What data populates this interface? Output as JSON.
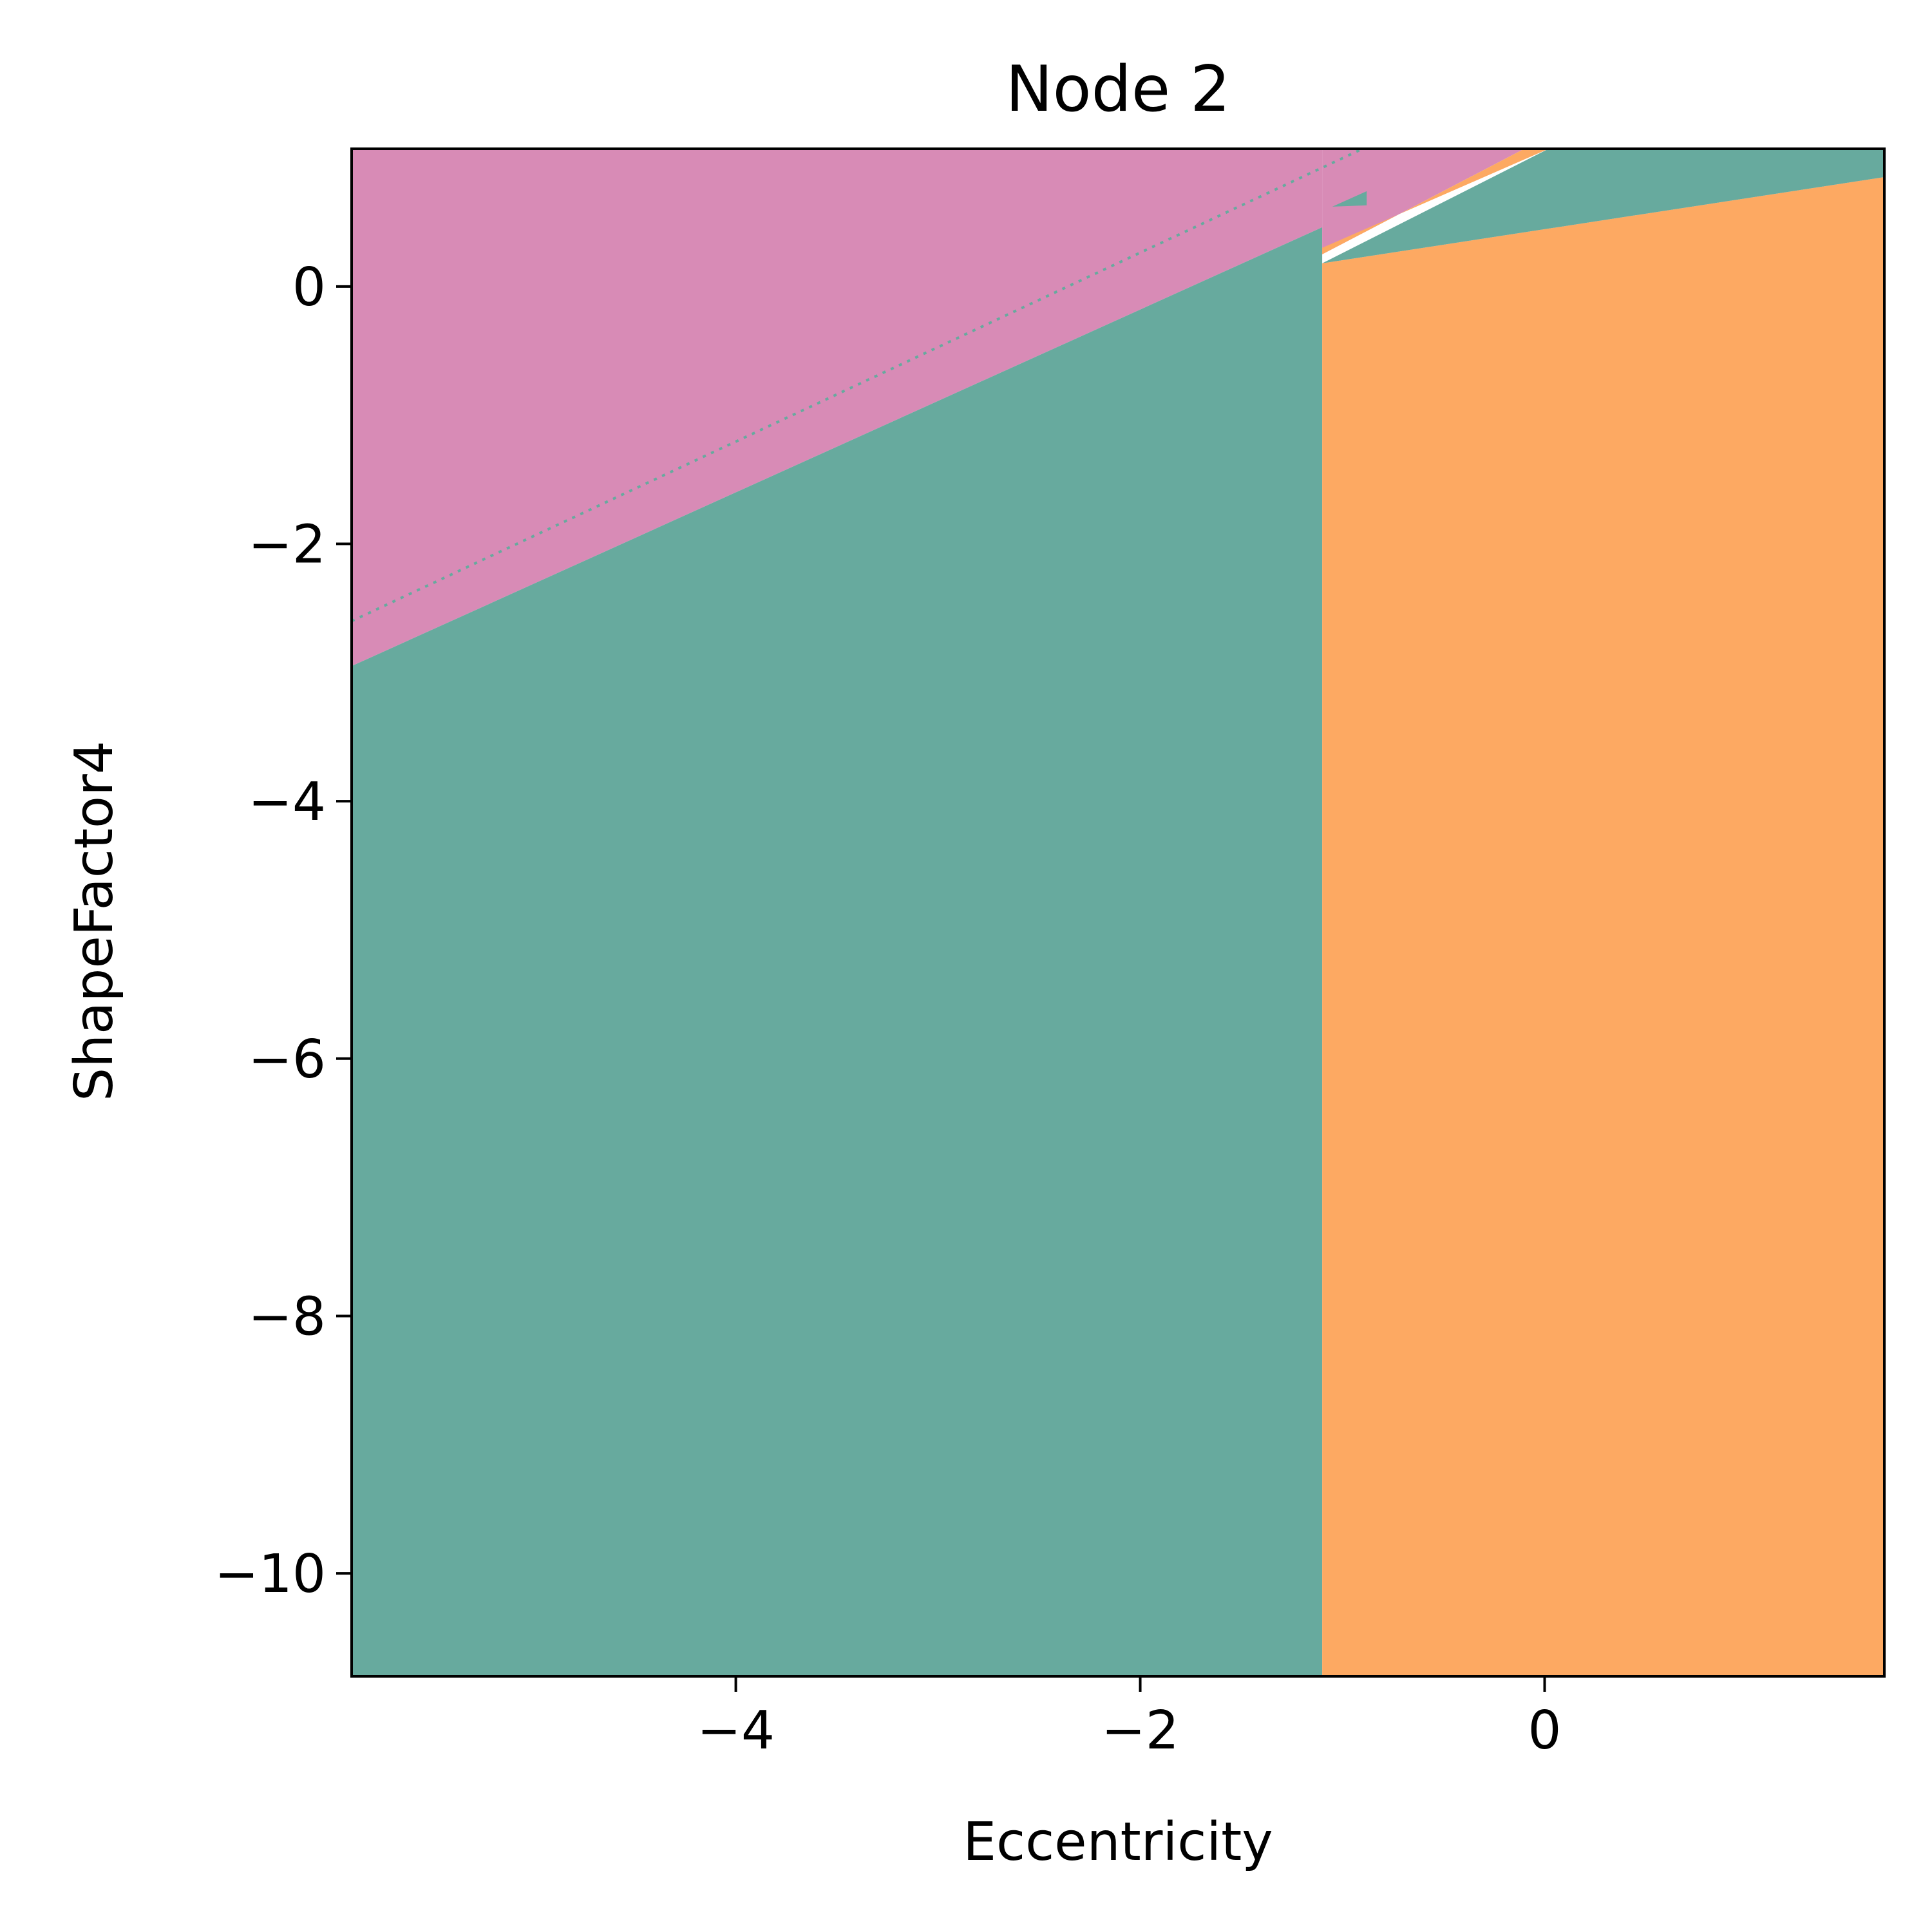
{
  "chart_data": {
    "type": "decision-regions",
    "title": "Node 2",
    "xlabel": "Eccentricity",
    "ylabel": "ShapeFactor4",
    "xlim": [
      -5.9,
      1.68
    ],
    "ylim": [
      -10.8,
      1.07
    ],
    "xticks": [
      {
        "value": -4,
        "label": "−4"
      },
      {
        "value": -2,
        "label": "−2"
      },
      {
        "value": 0,
        "label": "0"
      }
    ],
    "yticks": [
      {
        "value": 0,
        "label": "0"
      },
      {
        "value": -2,
        "label": "−2"
      },
      {
        "value": -4,
        "label": "−4"
      },
      {
        "value": -6,
        "label": "−6"
      },
      {
        "value": -8,
        "label": "−8"
      },
      {
        "value": -10,
        "label": "−10"
      }
    ],
    "grid": false,
    "legend": "none",
    "colors": {
      "pink": "#d88bb6",
      "teal": "#67aa9e",
      "orange": "#fda962",
      "frame": "#000000"
    },
    "regions": [
      {
        "class": "pink",
        "polygon": [
          [
            -5.9,
            1.07
          ],
          [
            -1.1,
            1.07
          ],
          [
            -1.1,
            0.46
          ],
          [
            -5.9,
            -2.95
          ]
        ]
      },
      {
        "class": "teal",
        "polygon": [
          [
            -5.9,
            -2.95
          ],
          [
            -1.1,
            0.46
          ],
          [
            -1.1,
            -10.8
          ],
          [
            -5.9,
            -10.8
          ]
        ]
      },
      {
        "class": "orange",
        "polygon": [
          [
            -1.1,
            0.18
          ],
          [
            1.68,
            0.85
          ],
          [
            1.68,
            -10.8
          ],
          [
            -1.1,
            -10.8
          ]
        ]
      },
      {
        "class": "pink",
        "polygon": [
          [
            -1.1,
            1.07
          ],
          [
            -0.1,
            1.07
          ],
          [
            -1.1,
            0.25
          ]
        ]
      },
      {
        "class": "orange",
        "polygon": [
          [
            -1.1,
            0.25
          ],
          [
            -0.1,
            1.07
          ],
          [
            0.02,
            1.07
          ],
          [
            -1.1,
            0.3
          ]
        ]
      },
      {
        "class": "teal",
        "polygon": [
          [
            -1.1,
            0.18
          ],
          [
            0.02,
            1.07
          ],
          [
            1.68,
            1.07
          ],
          [
            1.68,
            0.85
          ]
        ]
      },
      {
        "class": "teal",
        "polygon": [
          [
            -1.05,
            0.62
          ],
          [
            -0.88,
            0.74
          ],
          [
            -0.88,
            0.63
          ]
        ]
      }
    ],
    "dotted_boundary": {
      "class": "teal",
      "from": [
        -5.9,
        -2.6
      ],
      "to": [
        -0.9,
        1.07
      ]
    }
  }
}
